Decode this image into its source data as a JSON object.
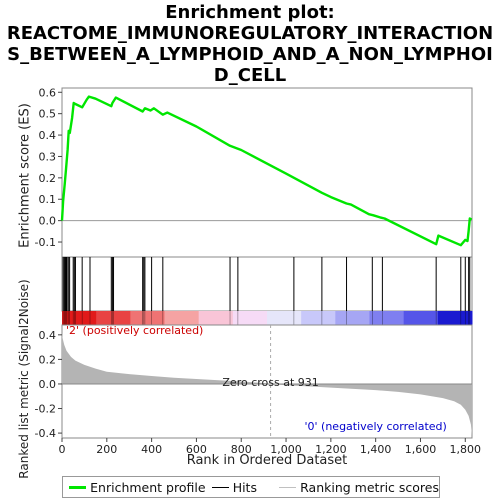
{
  "chart_data": {
    "type": "line",
    "title_lines": [
      "Enrichment plot:",
      "REACTOME_IMMUNOREGULATORY_INTERACTION",
      "S_BETWEEN_A_LYMPHOID_AND_A_NON_LYMPHOI",
      "D_CELL"
    ],
    "es_panel": {
      "ylabel": "Enrichment score (ES)",
      "ylim": [
        -0.17,
        0.62
      ],
      "yticks": [
        -0.1,
        0.0,
        0.1,
        0.2,
        0.3,
        0.4,
        0.5,
        0.6
      ],
      "ytick_labels": [
        "-0.1",
        "0.0",
        "0.1",
        "0.2",
        "0.3",
        "0.4",
        "0.5",
        "0.6"
      ],
      "line_color": "#00e600",
      "series": [
        {
          "x": [
            0,
            5,
            12,
            18,
            25,
            30,
            35,
            45,
            52,
            60,
            90,
            110,
            120,
            150,
            220,
            225,
            240,
            360,
            370,
            395,
            410,
            450,
            470,
            600,
            750,
            800,
            1000,
            1160,
            1200,
            1270,
            1290,
            1370,
            1390,
            1420,
            1440,
            1670,
            1680,
            1780,
            1800,
            1810,
            1815,
            1820,
            1828
          ],
          "y": [
            0.0,
            0.09,
            0.17,
            0.24,
            0.33,
            0.42,
            0.41,
            0.48,
            0.55,
            0.545,
            0.53,
            0.565,
            0.58,
            0.57,
            0.535,
            0.55,
            0.575,
            0.51,
            0.525,
            0.515,
            0.525,
            0.495,
            0.505,
            0.44,
            0.35,
            0.33,
            0.22,
            0.13,
            0.11,
            0.08,
            0.075,
            0.03,
            0.025,
            0.015,
            0.01,
            -0.11,
            -0.07,
            -0.115,
            -0.09,
            -0.095,
            -0.05,
            0.01,
            0.005
          ]
        }
      ]
    },
    "hits": [
      5,
      10,
      14,
      18,
      22,
      28,
      34,
      50,
      55,
      60,
      90,
      125,
      220,
      225,
      230,
      360,
      365,
      370,
      400,
      450,
      750,
      785,
      1035,
      1160,
      1270,
      1385,
      1430,
      1670,
      1780,
      1800,
      1815,
      1820
    ],
    "rank_bar_colors": [
      "#e11a1a",
      "#e84343",
      "#ef7373",
      "#f5a3a3",
      "#f9c5d7",
      "#f6dbf6",
      "#e6e6fa",
      "#c8c8fa",
      "#a6a6f4",
      "#7f7ff0",
      "#5555e8",
      "#1a1ad0"
    ],
    "metric_panel": {
      "ylabel": "Ranked list metric (Signal2Noise)",
      "ylim": [
        -0.44,
        0.48
      ],
      "yticks": [
        -0.4,
        -0.2,
        0.0,
        0.2,
        0.4
      ],
      "ytick_labels": [
        "-0.4",
        "-0.2",
        "0.0",
        "0.2",
        "0.4"
      ],
      "fill_color": "#b4b4b4",
      "series": [
        {
          "x": [
            0,
            2,
            10,
            20,
            40,
            60,
            100,
            150,
            200,
            300,
            400,
            500,
            600,
            700,
            800,
            900,
            931,
            1000,
            1100,
            1200,
            1300,
            1400,
            1500,
            1600,
            1650,
            1700,
            1750,
            1780,
            1800,
            1815,
            1825,
            1830
          ],
          "y": [
            0.42,
            0.38,
            0.32,
            0.27,
            0.22,
            0.19,
            0.155,
            0.125,
            0.1,
            0.08,
            0.065,
            0.05,
            0.04,
            0.03,
            0.02,
            0.008,
            0.0,
            -0.01,
            -0.02,
            -0.03,
            -0.04,
            -0.05,
            -0.065,
            -0.085,
            -0.1,
            -0.115,
            -0.14,
            -0.17,
            -0.21,
            -0.26,
            -0.33,
            -0.42
          ]
        }
      ],
      "zero_cross_label": "Zero cross at 931",
      "pos_label": "'2' (positively correlated)",
      "neg_label": "'0' (negatively correlated)",
      "pos_color": "#cc0000",
      "neg_color": "#0000cc"
    },
    "xlabel": "Rank in Ordered Dataset",
    "xlim": [
      0,
      1830
    ],
    "xticks": [
      0,
      200,
      400,
      600,
      800,
      1000,
      1200,
      1400,
      1600,
      1800
    ],
    "xtick_labels": [
      "0",
      "200",
      "400",
      "600",
      "800",
      "1,000",
      "1,200",
      "1,400",
      "1,600",
      "1,800"
    ],
    "legend": [
      {
        "label": "Enrichment profile",
        "color": "#00e600",
        "kind": "thick-line"
      },
      {
        "label": "Hits",
        "color": "#000000",
        "kind": "line"
      },
      {
        "label": "Ranking metric scores",
        "color": "#c0c0c0",
        "kind": "line"
      }
    ]
  }
}
